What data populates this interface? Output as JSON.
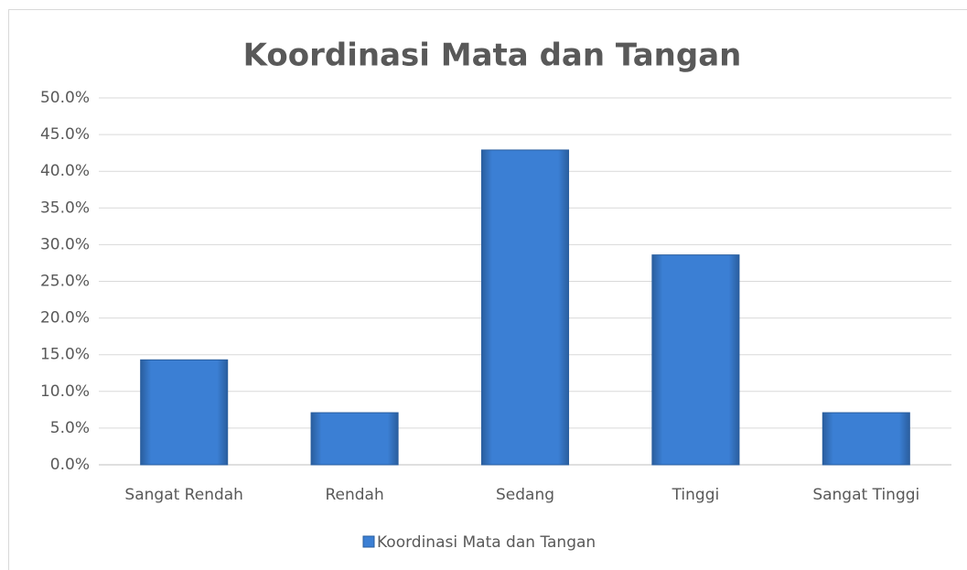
{
  "chart_data": {
    "type": "bar",
    "title": "Koordinasi Mata dan Tangan",
    "categories": [
      "Sangat Rendah",
      "Rendah",
      "Sedang",
      "Tinggi",
      "Sangat Tinggi"
    ],
    "series": [
      {
        "name": "Koordinasi Mata dan Tangan",
        "color": "#3b7fd4",
        "values": [
          14.3,
          7.1,
          42.9,
          28.6,
          7.1
        ]
      }
    ],
    "ylim": [
      0,
      50
    ],
    "yticks": [
      {
        "value": 0,
        "label": "0.0%"
      },
      {
        "value": 5,
        "label": "5.0%"
      },
      {
        "value": 10,
        "label": "10.0%"
      },
      {
        "value": 15,
        "label": "15.0%"
      },
      {
        "value": 20,
        "label": "20.0%"
      },
      {
        "value": 25,
        "label": "25.0%"
      },
      {
        "value": 30,
        "label": "30.0%"
      },
      {
        "value": 35,
        "label": "35.0%"
      },
      {
        "value": 40,
        "label": "40.0%"
      },
      {
        "value": 45,
        "label": "45.0%"
      },
      {
        "value": 50,
        "label": "50.0%"
      }
    ],
    "grid": true,
    "legend": "bottom"
  }
}
